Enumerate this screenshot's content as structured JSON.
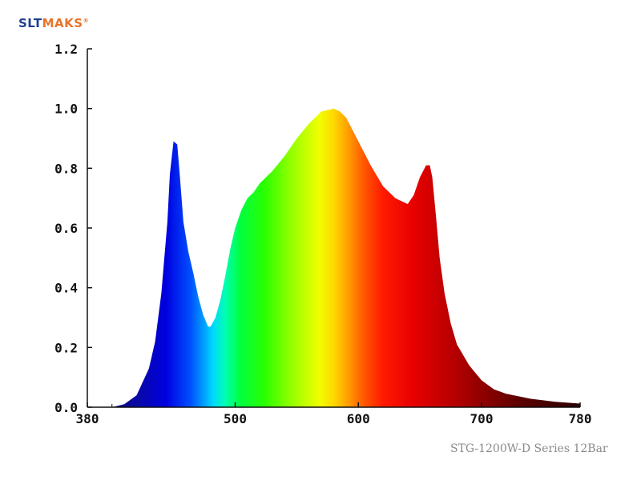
{
  "brand": {
    "part1": "SLT",
    "part2": "MAKS",
    "mark": "®"
  },
  "caption": "STG-1200W-D Series 12Bar",
  "colors": {
    "brand_primary": "#1f3f8f",
    "brand_accent": "#e8742a",
    "axis": "#111111"
  },
  "chart_data": {
    "type": "area",
    "title": "",
    "xlabel": "",
    "ylabel": "",
    "xlim": [
      380,
      780
    ],
    "ylim": [
      0,
      1.2
    ],
    "x_ticks": [
      380,
      500,
      600,
      700,
      780
    ],
    "x_tick_labels": [
      "380",
      "500",
      "600",
      "700",
      "780"
    ],
    "y_ticks": [
      0,
      0.2,
      0.4,
      0.6,
      0.8,
      1.0,
      1.2
    ],
    "y_tick_labels": [
      "0.0",
      "0.2",
      "0.4",
      "0.6",
      "0.8",
      "1.0",
      "1.2"
    ],
    "grid": false,
    "legend": "none",
    "fill": "visible-spectrum gradient",
    "series": [
      {
        "x": [
          380,
          400,
          410,
          420,
          430,
          435,
          440,
          445,
          447,
          450,
          453,
          455,
          458,
          462,
          466,
          470,
          474,
          478,
          480,
          484,
          488,
          492,
          496,
          500,
          505,
          510,
          515,
          520,
          530,
          540,
          550,
          560,
          570,
          580,
          585,
          590,
          595,
          600,
          610,
          620,
          630,
          640,
          645,
          650,
          655,
          658,
          660,
          663,
          666,
          670,
          675,
          680,
          690,
          700,
          710,
          720,
          740,
          760,
          780
        ],
        "y": [
          0.0,
          0.0,
          0.01,
          0.04,
          0.13,
          0.22,
          0.38,
          0.62,
          0.78,
          0.89,
          0.88,
          0.78,
          0.62,
          0.52,
          0.45,
          0.37,
          0.31,
          0.27,
          0.27,
          0.3,
          0.36,
          0.44,
          0.53,
          0.6,
          0.66,
          0.7,
          0.72,
          0.75,
          0.79,
          0.84,
          0.9,
          0.95,
          0.99,
          1.0,
          0.99,
          0.97,
          0.93,
          0.89,
          0.81,
          0.74,
          0.7,
          0.68,
          0.71,
          0.77,
          0.81,
          0.81,
          0.77,
          0.64,
          0.5,
          0.38,
          0.28,
          0.21,
          0.14,
          0.09,
          0.06,
          0.045,
          0.028,
          0.018,
          0.012
        ]
      }
    ]
  }
}
